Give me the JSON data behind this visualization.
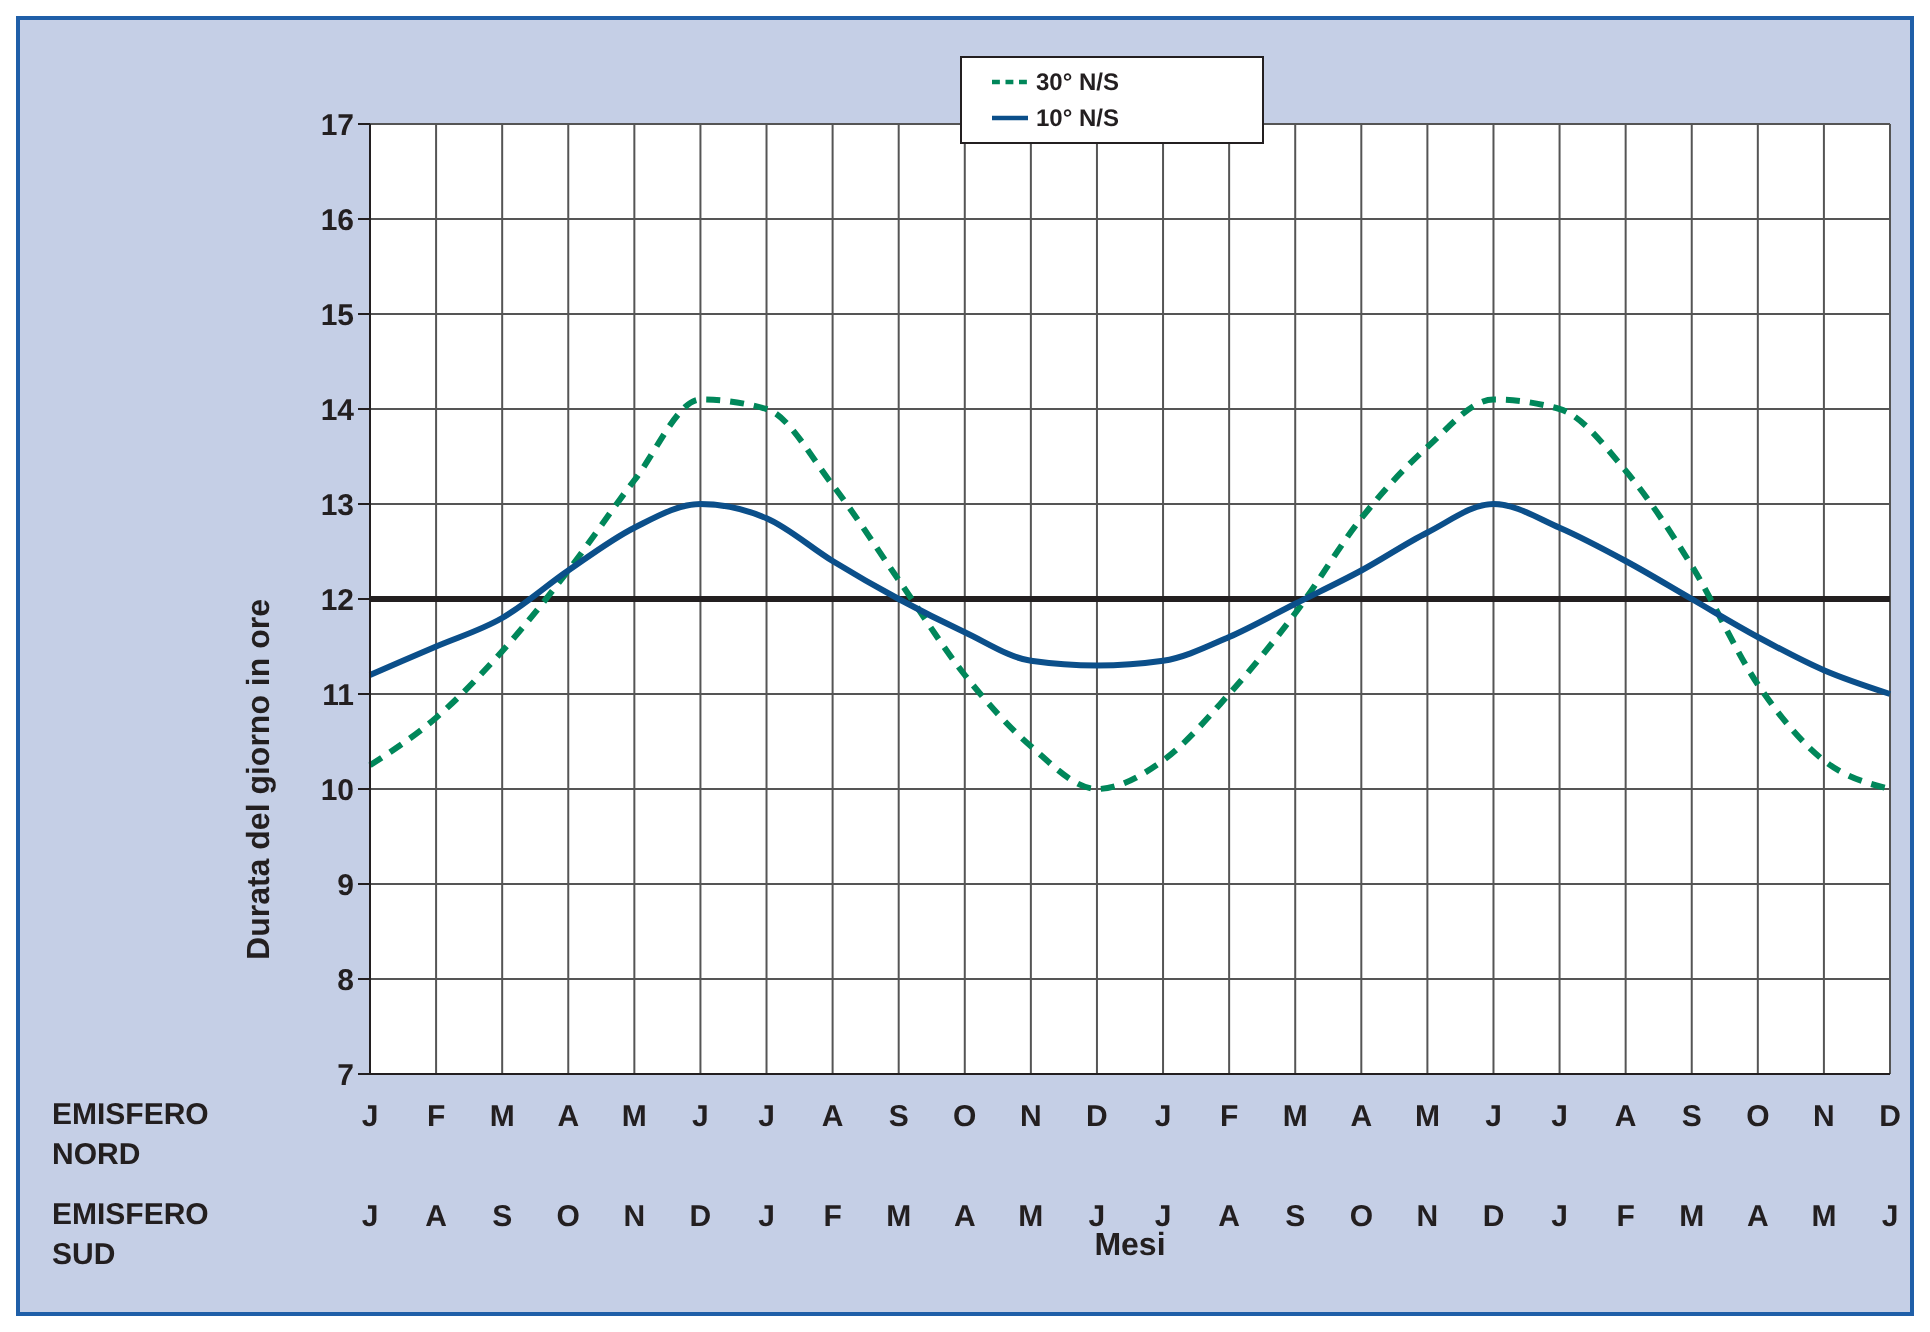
{
  "chart_data": {
    "type": "line",
    "xlabel": "Mesi",
    "ylabel": "Durata del giorno in ore",
    "categories": [
      "J\nJ",
      "F\nA",
      "M\nS",
      "A\nO",
      "M\nN",
      "J\nD",
      "J\nJ",
      "A\nF",
      "S\nM",
      "O\nA",
      "N\nM",
      "D\nJ",
      "J\nJ",
      "F\nA",
      "M\nS",
      "A\nO",
      "M\nN",
      "J\nD",
      "J\nJ",
      "A\nF",
      "S\nM",
      "O\nA",
      "N\nM",
      "D\nJ"
    ],
    "series": [
      {
        "name": "30° N/S",
        "color": "#00875a",
        "line_style": "dashed",
        "values": [
          10.25,
          10.75,
          11.45,
          12.3,
          13.25,
          14.1,
          14.0,
          13.2,
          12.2,
          11.2,
          10.45,
          10.0,
          10.3,
          11.0,
          11.85,
          12.85,
          13.6,
          14.1,
          14.0,
          13.35,
          12.35,
          11.1,
          10.3,
          10.0
        ]
      },
      {
        "name": "10° N/S",
        "color": "#0b4f8a",
        "line_style": "solid",
        "values": [
          11.2,
          11.5,
          11.8,
          12.3,
          12.75,
          13.0,
          12.85,
          12.4,
          12.0,
          11.65,
          11.35,
          11.3,
          11.35,
          11.6,
          11.95,
          12.3,
          12.7,
          13.0,
          12.75,
          12.4,
          12.0,
          11.6,
          11.25,
          11.0
        ]
      }
    ],
    "ylim": [
      7,
      17
    ],
    "yticks": [
      7,
      8,
      9,
      10,
      11,
      12,
      13,
      14,
      15,
      16,
      17
    ],
    "ref_lines": [
      {
        "axis": "y",
        "value": 12,
        "color": "#231f20"
      }
    ],
    "annotations": [
      "EMISFERO NORD",
      "EMISFERO SUD"
    ],
    "grid": true,
    "legend": "top",
    "marker": "none"
  }
}
